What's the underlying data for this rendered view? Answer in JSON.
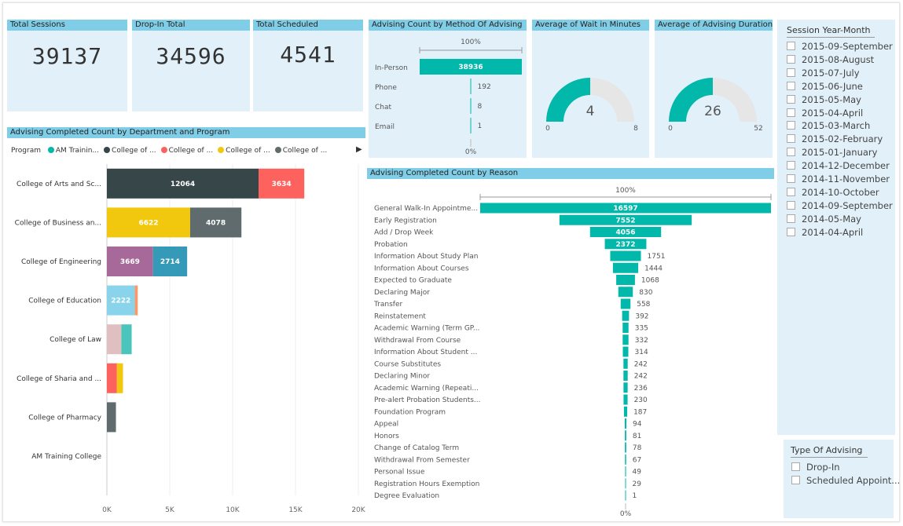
{
  "kpis": {
    "total_sessions": {
      "title": "Total Sessions",
      "value": "39137"
    },
    "drop_in_total": {
      "title": "Drop-In Total",
      "value": "34596"
    },
    "total_scheduled": {
      "title": "Total Scheduled",
      "value": "4541"
    }
  },
  "method_chart": {
    "title": "Advising Count by Method Of Advising",
    "top_label": "100%",
    "bottom_label": "0%"
  },
  "wait_gauge": {
    "title": "Average of Wait in Minutes",
    "value": 4,
    "min": 0,
    "max": 8,
    "value_label": "4",
    "min_label": "0",
    "max_label": "8"
  },
  "duration_gauge": {
    "title": "Average of Advising Duration",
    "value": 26,
    "min": 0,
    "max": 52,
    "value_label": "26",
    "min_label": "0",
    "max_label": "52"
  },
  "dept_chart": {
    "title": "Advising Completed Count by Department and Program",
    "legend_label": "Program",
    "legend_items": [
      {
        "label": "AM Trainin...",
        "color": "#01b8aa"
      },
      {
        "label": "College of ...",
        "color": "#374649"
      },
      {
        "label": "College of ...",
        "color": "#fd625e"
      },
      {
        "label": "College of ...",
        "color": "#f2c80f"
      },
      {
        "label": "College of ...",
        "color": "#5f6b6d"
      }
    ],
    "legend_more_icon": "triangle-right-icon"
  },
  "reason_chart": {
    "title": "Advising Completed Count by Reason",
    "top_label": "100%",
    "bottom_label": "0%"
  },
  "year_month_slicer": {
    "title": "Session Year-Month",
    "items": [
      "2015-09-September",
      "2015-08-August",
      "2015-07-July",
      "2015-06-June",
      "2015-05-May",
      "2015-04-April",
      "2015-03-March",
      "2015-02-February",
      "2015-01-January",
      "2014-12-December",
      "2014-11-November",
      "2014-10-October",
      "2014-09-September",
      "2014-05-May",
      "2014-04-April"
    ]
  },
  "type_slicer": {
    "title": "Type Of Advising",
    "items": [
      "Drop-In",
      "Scheduled Appoint..."
    ]
  },
  "chart_data": [
    {
      "type": "bar",
      "title": "Advising Count by Method Of Advising",
      "orientation": "funnel",
      "categories": [
        "In-Person",
        "Phone",
        "Chat",
        "Email"
      ],
      "values": [
        38936,
        192,
        8,
        1
      ],
      "colors": {
        "bar": "#01b8aa"
      }
    },
    {
      "type": "bar",
      "title": "Advising Completed Count by Department and Program",
      "orientation": "horizontal-stacked",
      "xlim": [
        0,
        20000
      ],
      "x_ticks": [
        "0K",
        "5K",
        "10K",
        "15K",
        "20K"
      ],
      "x_tick_values": [
        0,
        5000,
        10000,
        15000,
        20000
      ],
      "categories": [
        "College of Arts and Sc...",
        "College of Business an...",
        "College of Engineering",
        "College of Education",
        "College of Law",
        "College of Sharia and ...",
        "College of Pharmacy",
        "AM Training College"
      ],
      "segments": [
        [
          {
            "value": 12064,
            "color": "#374649",
            "label": "12064"
          },
          {
            "value": 3634,
            "color": "#fd625e",
            "label": "3634"
          }
        ],
        [
          {
            "value": 6622,
            "color": "#f2c80f",
            "label": "6622"
          },
          {
            "value": 4078,
            "color": "#5f6b6d",
            "label": "4078"
          }
        ],
        [
          {
            "value": 3669,
            "color": "#a66999",
            "label": "3669"
          },
          {
            "value": 2714,
            "color": "#3599b8",
            "label": "2714"
          }
        ],
        [
          {
            "value": 2222,
            "color": "#8ad4eb",
            "label": "2222"
          },
          {
            "value": 230,
            "color": "#fe9666",
            "label": ""
          }
        ],
        [
          {
            "value": 1150,
            "color": "#dfbfbf",
            "label": ""
          },
          {
            "value": 820,
            "color": "#4ac5bb",
            "label": ""
          }
        ],
        [
          {
            "value": 800,
            "color": "#fd625e",
            "label": ""
          },
          {
            "value": 480,
            "color": "#f2c80f",
            "label": ""
          }
        ],
        [
          {
            "value": 720,
            "color": "#5f6b6d",
            "label": ""
          }
        ],
        []
      ]
    },
    {
      "type": "bar",
      "title": "Advising Completed Count by Reason",
      "orientation": "funnel",
      "categories": [
        "General Walk-In Appointme...",
        "Early Registration",
        "Add / Drop Week",
        "Probation",
        "Information About Study Plan",
        "Information About Courses",
        "Expected to Graduate",
        "Declaring Major",
        "Transfer",
        "Reinstatement",
        "Academic Warning (Term GP...",
        "Withdrawal From Course",
        "Information About Student ...",
        "Course Substitutes",
        "Declaring Minor",
        "Academic Warning (Repeati...",
        "Pre-alert Probation Students...",
        "Foundation Program",
        "Appeal",
        "Honors",
        "Change of Catalog Term",
        "Withdrawal From Semester",
        "Personal Issue",
        "Registration Hours Exemption",
        "Degree Evaluation"
      ],
      "values": [
        16597,
        7552,
        4056,
        2372,
        1751,
        1444,
        1068,
        830,
        558,
        392,
        335,
        332,
        314,
        242,
        242,
        236,
        230,
        187,
        94,
        81,
        78,
        67,
        49,
        29,
        1
      ],
      "colors": {
        "bar": "#01b8aa"
      }
    }
  ]
}
